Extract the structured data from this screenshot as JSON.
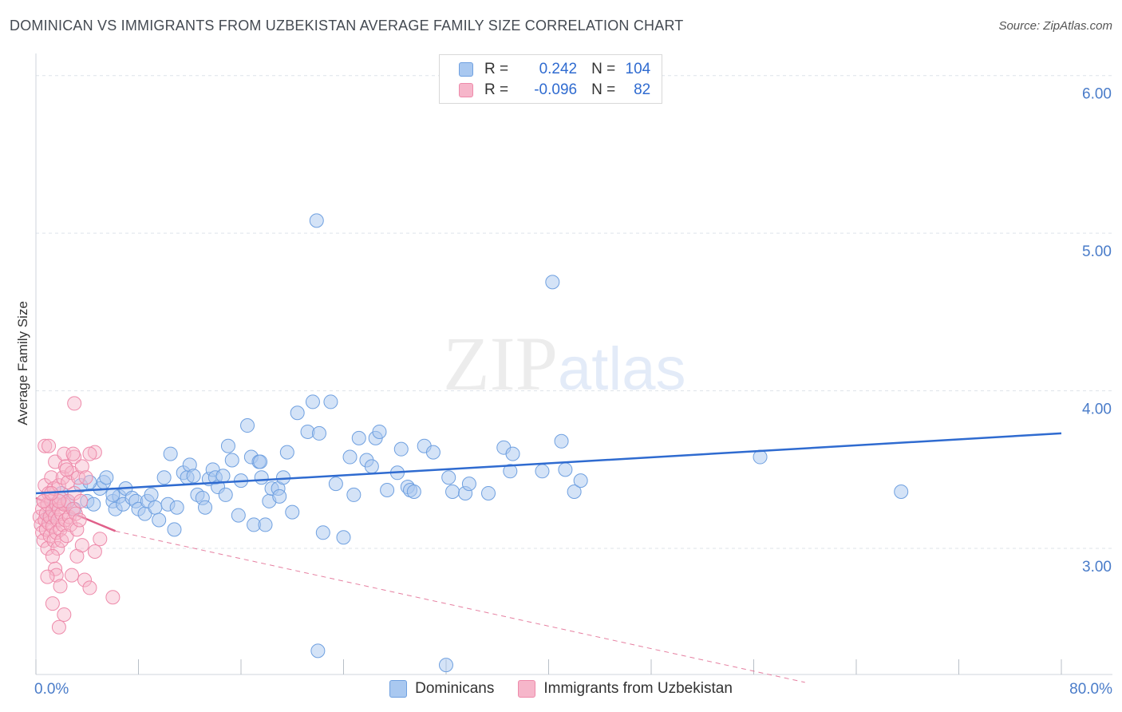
{
  "header": {
    "title": "DOMINICAN VS IMMIGRANTS FROM UZBEKISTAN AVERAGE FAMILY SIZE CORRELATION CHART",
    "source": "Source: ZipAtlas.com"
  },
  "watermark": {
    "zip": "ZIP",
    "atlas": "atlas"
  },
  "legend_top": {
    "rows": [
      {
        "r_label": "R =",
        "r_value": "0.242",
        "n_label": "N =",
        "n_value": "104"
      },
      {
        "r_label": "R =",
        "r_value": "-0.096",
        "n_label": "N =",
        "n_value": "82"
      }
    ]
  },
  "colors": {
    "blue_fill": "#a9c8f0",
    "blue_stroke": "#6fa0e0",
    "blue_line": "#2f6bd0",
    "pink_fill": "#f6b6ca",
    "pink_stroke": "#ee8aaa",
    "pink_line": "#e0608a",
    "grid": "#dde3ea",
    "axis_text": "#4a7cc9"
  },
  "chart_data": {
    "type": "scatter",
    "title": "DOMINICAN VS IMMIGRANTS FROM UZBEKISTAN AVERAGE FAMILY SIZE CORRELATION CHART",
    "xlabel": "",
    "ylabel": "Average Family Size",
    "xlim": [
      0,
      80
    ],
    "ylim": [
      2.2,
      6.1
    ],
    "x_tick_labels": [
      "0.0%",
      "80.0%"
    ],
    "y_ticks": [
      3.0,
      4.0,
      5.0,
      6.0
    ],
    "y_tick_labels": [
      "3.00",
      "4.00",
      "5.00",
      "6.00"
    ],
    "grid": true,
    "legend_position": "bottom",
    "series": [
      {
        "name": "Dominicans",
        "color": "#6fa0e0",
        "trend": {
          "x": [
            0,
            80
          ],
          "y": [
            3.35,
            3.73
          ]
        },
        "points": [
          [
            1.0,
            3.2
          ],
          [
            1.5,
            3.28
          ],
          [
            2.0,
            3.35
          ],
          [
            2.5,
            3.3
          ],
          [
            3.0,
            3.25
          ],
          [
            3.5,
            3.4
          ],
          [
            4.0,
            3.3
          ],
          [
            4.5,
            3.28
          ],
          [
            5.0,
            3.38
          ],
          [
            5.3,
            3.42
          ],
          [
            5.5,
            3.45
          ],
          [
            6.0,
            3.3
          ],
          [
            6.2,
            3.25
          ],
          [
            6.5,
            3.33
          ],
          [
            6.8,
            3.28
          ],
          [
            7.0,
            3.38
          ],
          [
            7.5,
            3.32
          ],
          [
            7.8,
            3.3
          ],
          [
            8.0,
            3.25
          ],
          [
            8.5,
            3.22
          ],
          [
            8.7,
            3.3
          ],
          [
            9.0,
            3.34
          ],
          [
            9.3,
            3.26
          ],
          [
            9.6,
            3.18
          ],
          [
            10.0,
            3.45
          ],
          [
            10.3,
            3.28
          ],
          [
            10.5,
            3.6
          ],
          [
            10.8,
            3.12
          ],
          [
            11.0,
            3.26
          ],
          [
            11.5,
            3.48
          ],
          [
            11.8,
            3.45
          ],
          [
            12.0,
            3.53
          ],
          [
            12.3,
            3.46
          ],
          [
            12.6,
            3.34
          ],
          [
            13.0,
            3.32
          ],
          [
            13.2,
            3.26
          ],
          [
            13.5,
            3.44
          ],
          [
            13.8,
            3.5
          ],
          [
            14.0,
            3.45
          ],
          [
            14.2,
            3.39
          ],
          [
            14.6,
            3.46
          ],
          [
            14.8,
            3.34
          ],
          [
            15.0,
            3.65
          ],
          [
            15.3,
            3.56
          ],
          [
            15.8,
            3.21
          ],
          [
            16.0,
            3.43
          ],
          [
            16.5,
            3.78
          ],
          [
            16.8,
            3.58
          ],
          [
            17.0,
            3.15
          ],
          [
            17.4,
            3.55
          ],
          [
            17.6,
            3.45
          ],
          [
            17.9,
            3.15
          ],
          [
            18.2,
            3.3
          ],
          [
            18.4,
            3.38
          ],
          [
            18.9,
            3.38
          ],
          [
            19.0,
            3.33
          ],
          [
            19.3,
            3.45
          ],
          [
            19.6,
            3.61
          ],
          [
            20.0,
            3.23
          ],
          [
            20.4,
            3.86
          ],
          [
            21.2,
            3.74
          ],
          [
            21.6,
            3.93
          ],
          [
            22.1,
            3.73
          ],
          [
            22.4,
            3.1
          ],
          [
            23.0,
            3.93
          ],
          [
            23.4,
            3.41
          ],
          [
            24.0,
            3.07
          ],
          [
            24.5,
            3.58
          ],
          [
            24.8,
            3.34
          ],
          [
            25.2,
            3.7
          ],
          [
            25.8,
            3.56
          ],
          [
            26.2,
            3.52
          ],
          [
            26.5,
            3.7
          ],
          [
            26.8,
            3.74
          ],
          [
            27.4,
            3.37
          ],
          [
            28.2,
            3.48
          ],
          [
            28.5,
            3.63
          ],
          [
            29.0,
            3.39
          ],
          [
            29.2,
            3.37
          ],
          [
            30.3,
            3.65
          ],
          [
            31.0,
            3.61
          ],
          [
            32.2,
            3.45
          ],
          [
            32.5,
            3.36
          ],
          [
            33.5,
            3.35
          ],
          [
            33.8,
            3.41
          ],
          [
            35.3,
            3.35
          ],
          [
            36.5,
            3.64
          ],
          [
            37.2,
            3.6
          ],
          [
            37.0,
            3.49
          ],
          [
            39.5,
            3.49
          ],
          [
            41.0,
            3.68
          ],
          [
            41.3,
            3.5
          ],
          [
            42.0,
            3.36
          ],
          [
            42.5,
            3.43
          ],
          [
            56.5,
            3.58
          ],
          [
            67.5,
            3.36
          ],
          [
            21.9,
            5.08
          ],
          [
            40.3,
            4.69
          ],
          [
            22.0,
            2.35
          ],
          [
            32.0,
            2.26
          ],
          [
            4.2,
            3.42
          ],
          [
            6.0,
            3.34
          ],
          [
            17.5,
            3.55
          ],
          [
            29.5,
            3.36
          ]
        ]
      },
      {
        "name": "Immigrants from Uzbekistan",
        "color": "#ee8aaa",
        "trend_solid": {
          "x": [
            0,
            6.2
          ],
          "y": [
            3.32,
            3.11
          ]
        },
        "trend_dashed": {
          "x": [
            6.2,
            60
          ],
          "y": [
            3.11,
            2.15
          ]
        },
        "points": [
          [
            0.3,
            3.2
          ],
          [
            0.4,
            3.15
          ],
          [
            0.5,
            3.1
          ],
          [
            0.5,
            3.25
          ],
          [
            0.6,
            3.3
          ],
          [
            0.6,
            3.05
          ],
          [
            0.7,
            3.18
          ],
          [
            0.7,
            3.4
          ],
          [
            0.8,
            3.22
          ],
          [
            0.8,
            3.12
          ],
          [
            0.9,
            3.28
          ],
          [
            0.9,
            3.0
          ],
          [
            1.0,
            3.35
          ],
          [
            1.0,
            3.16
          ],
          [
            1.1,
            3.2
          ],
          [
            1.1,
            3.08
          ],
          [
            1.2,
            3.3
          ],
          [
            1.2,
            3.45
          ],
          [
            1.3,
            3.14
          ],
          [
            1.3,
            3.24
          ],
          [
            1.4,
            3.05
          ],
          [
            1.4,
            3.38
          ],
          [
            1.5,
            3.2
          ],
          [
            1.5,
            3.55
          ],
          [
            1.6,
            3.1
          ],
          [
            1.6,
            3.28
          ],
          [
            1.7,
            3.18
          ],
          [
            1.7,
            3.0
          ],
          [
            1.8,
            3.25
          ],
          [
            1.8,
            3.4
          ],
          [
            1.9,
            3.12
          ],
          [
            1.9,
            3.32
          ],
          [
            2.0,
            3.22
          ],
          [
            2.0,
            3.05
          ],
          [
            2.1,
            3.45
          ],
          [
            2.1,
            3.15
          ],
          [
            2.2,
            3.28
          ],
          [
            2.2,
            3.6
          ],
          [
            2.3,
            3.18
          ],
          [
            2.3,
            3.52
          ],
          [
            2.4,
            3.08
          ],
          [
            2.5,
            3.3
          ],
          [
            2.5,
            3.42
          ],
          [
            2.6,
            3.2
          ],
          [
            2.7,
            3.15
          ],
          [
            2.8,
            3.48
          ],
          [
            2.9,
            3.25
          ],
          [
            3.0,
            3.35
          ],
          [
            3.0,
            3.58
          ],
          [
            3.1,
            3.22
          ],
          [
            3.2,
            3.12
          ],
          [
            3.3,
            3.45
          ],
          [
            3.4,
            3.18
          ],
          [
            3.5,
            3.3
          ],
          [
            3.6,
            3.52
          ],
          [
            0.7,
            3.65
          ],
          [
            1.0,
            3.65
          ],
          [
            3.0,
            3.92
          ],
          [
            1.3,
            2.95
          ],
          [
            1.5,
            2.87
          ],
          [
            1.6,
            2.83
          ],
          [
            1.9,
            2.76
          ],
          [
            0.9,
            2.82
          ],
          [
            2.8,
            2.83
          ],
          [
            3.2,
            2.95
          ],
          [
            3.8,
            2.8
          ],
          [
            4.2,
            2.75
          ],
          [
            4.6,
            2.98
          ],
          [
            5.0,
            3.06
          ],
          [
            3.6,
            3.02
          ],
          [
            1.3,
            2.65
          ],
          [
            2.2,
            2.58
          ],
          [
            1.8,
            2.5
          ],
          [
            6.0,
            2.69
          ],
          [
            4.6,
            3.61
          ],
          [
            4.2,
            3.6
          ],
          [
            3.9,
            3.45
          ],
          [
            2.9,
            3.6
          ],
          [
            2.4,
            3.5
          ],
          [
            1.8,
            3.3
          ],
          [
            0.6,
            3.3
          ],
          [
            1.2,
            3.35
          ]
        ]
      }
    ]
  },
  "bottom_legend": {
    "items": [
      {
        "label": "Dominicans"
      },
      {
        "label": "Immigrants from Uzbekistan"
      }
    ]
  }
}
